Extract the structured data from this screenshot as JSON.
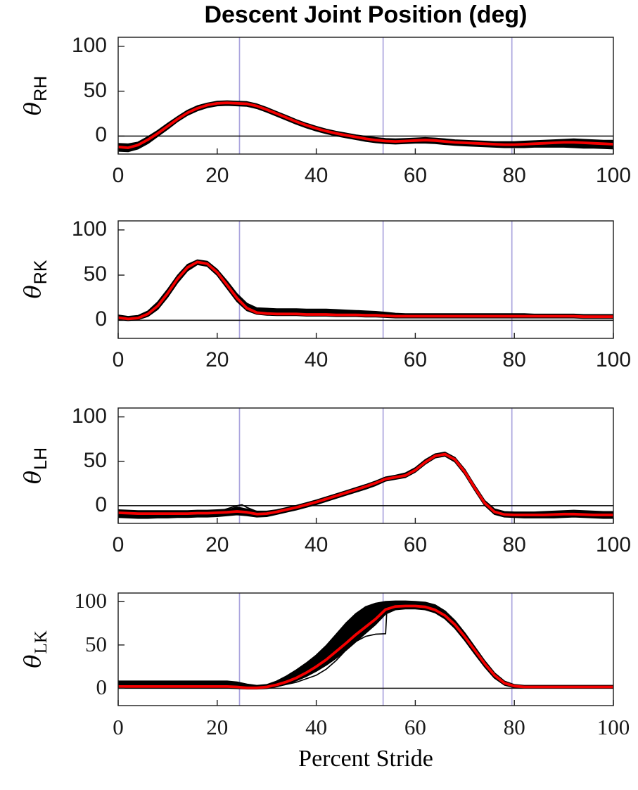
{
  "chart_data": {
    "type": "line",
    "title": "Descent Joint Position (deg)",
    "xlabel": "Percent Stride",
    "xlim": [
      0,
      100
    ],
    "ylim": [
      -20,
      110
    ],
    "xticks": [
      0,
      20,
      40,
      60,
      80,
      100
    ],
    "xtick_labels": [
      "0",
      "20",
      "40",
      "60",
      "80",
      "100"
    ],
    "yticks": [
      100,
      50,
      0
    ],
    "ytick_labels": [
      "100",
      "50",
      "0"
    ],
    "event_lines_x": [
      24.5,
      53.5,
      79.5
    ],
    "grid": false,
    "legend": null,
    "colors": {
      "mean": "#f40000",
      "trials": "#000000",
      "event_lines": "#aaa4de",
      "axis": "#1a1a1a",
      "zero_line": "#1a1a1a"
    },
    "x": [
      0,
      2,
      4,
      6,
      8,
      10,
      12,
      14,
      16,
      18,
      20,
      22,
      24,
      26,
      28,
      30,
      32,
      34,
      36,
      38,
      40,
      42,
      44,
      46,
      48,
      50,
      52,
      54,
      56,
      58,
      60,
      62,
      64,
      66,
      68,
      70,
      72,
      74,
      76,
      78,
      80,
      82,
      84,
      86,
      88,
      90,
      92,
      94,
      96,
      98,
      100
    ],
    "panels": [
      {
        "id": "RH",
        "ylabel_theta": "θ",
        "ylabel_sub": "RH",
        "tick_style": "sans",
        "mean": [
          -12,
          -13,
          -10,
          -4,
          3,
          11,
          19,
          26,
          31,
          34.5,
          36.5,
          37,
          36.5,
          36,
          33.5,
          29.5,
          25,
          20.5,
          16,
          12,
          8.5,
          5.5,
          3,
          1,
          -1,
          -3,
          -4.5,
          -5.5,
          -6,
          -5.5,
          -5,
          -4.5,
          -5,
          -6,
          -7,
          -7.5,
          -8,
          -8.5,
          -9,
          -9.5,
          -9.5,
          -9,
          -8.5,
          -8,
          -7.5,
          -7,
          -7,
          -7.5,
          -8,
          -8.5,
          -9
        ],
        "upper": [
          -8.5,
          -9,
          -7,
          -1,
          6,
          14,
          21.5,
          28.5,
          33.5,
          36.5,
          38.5,
          39,
          38.5,
          38,
          35.5,
          31.5,
          27,
          22.5,
          18,
          14,
          10.5,
          7.5,
          5,
          3,
          1,
          -0.5,
          -2,
          -3,
          -3.5,
          -3,
          -2.5,
          -2,
          -2.5,
          -3.5,
          -4.5,
          -5,
          -5.5,
          -6,
          -6.5,
          -6.5,
          -6.5,
          -6,
          -5.5,
          -5,
          -4.5,
          -4,
          -3.5,
          -4,
          -4.5,
          -5,
          -5
        ],
        "lower": [
          -16.5,
          -17,
          -14,
          -8,
          0,
          8,
          16.5,
          23.5,
          28.5,
          32,
          34,
          34.5,
          34,
          33.5,
          31,
          27,
          22.5,
          18,
          13.5,
          9.5,
          6,
          3,
          0.5,
          -1.5,
          -3.5,
          -5.5,
          -7,
          -8,
          -8.5,
          -8,
          -7.5,
          -7.5,
          -8,
          -9,
          -10,
          -10.5,
          -11,
          -11.5,
          -12,
          -12.5,
          -12.5,
          -12.5,
          -12,
          -12,
          -12,
          -12,
          -12.5,
          -13,
          -13,
          -13.5,
          -14
        ],
        "extra_traces": []
      },
      {
        "id": "RK",
        "ylabel_theta": "θ",
        "ylabel_sub": "RK",
        "tick_style": "sans",
        "mean": [
          3,
          1.5,
          2.5,
          7,
          16,
          30,
          46,
          58.5,
          64.5,
          62.5,
          53,
          39,
          24.5,
          13.5,
          8.5,
          7.5,
          7,
          7,
          7,
          6.5,
          6.5,
          6.5,
          6,
          6,
          6,
          5.5,
          5.5,
          5,
          4.5,
          4.5,
          4.5,
          4.5,
          4.5,
          4.5,
          4.5,
          4.5,
          4.5,
          4.5,
          4.5,
          4.5,
          4.5,
          4.5,
          4.5,
          4.5,
          4.5,
          4.5,
          4.5,
          4,
          4,
          4,
          4
        ],
        "upper": [
          5.5,
          4,
          5,
          10,
          20,
          34,
          49.5,
          61.5,
          66.5,
          65,
          56,
          43,
          29,
          18.5,
          13.5,
          13,
          12.5,
          12.5,
          12.5,
          12,
          12,
          12,
          11.5,
          11,
          10.5,
          10,
          9.5,
          8.5,
          7.5,
          7,
          7,
          7,
          7,
          7,
          7,
          7,
          7,
          7,
          7,
          7,
          7,
          7,
          6.5,
          6.5,
          6.5,
          6.5,
          6.5,
          6,
          6,
          6,
          6
        ],
        "lower": [
          1,
          0,
          1,
          4.5,
          12.5,
          26,
          42,
          55,
          62,
          60,
          50,
          35.5,
          21,
          11,
          7,
          6,
          5.5,
          5.5,
          5.5,
          5,
          5,
          5,
          4.5,
          4.5,
          4.5,
          4,
          4,
          3.5,
          3,
          3,
          3,
          3,
          3,
          3,
          3,
          3,
          3,
          3,
          3,
          3,
          3,
          3,
          3,
          3,
          3,
          3,
          3,
          2.5,
          2.5,
          2.5,
          2.5
        ],
        "extra_traces": []
      },
      {
        "id": "LH",
        "ylabel_theta": "θ",
        "ylabel_sub": "LH",
        "tick_style": "sans",
        "mean": [
          -8,
          -8.5,
          -9,
          -9,
          -9,
          -9,
          -9,
          -9,
          -8.5,
          -8.5,
          -8,
          -7.5,
          -6.5,
          -7.5,
          -9.5,
          -9,
          -7,
          -4.5,
          -2,
          1,
          4,
          7.5,
          11,
          14.5,
          18,
          21.5,
          25.5,
          30,
          32,
          34,
          40,
          49,
          56,
          58,
          52,
          38,
          20,
          3,
          -7,
          -10,
          -10.5,
          -10.5,
          -10.5,
          -10.5,
          -10,
          -9.5,
          -9.5,
          -10,
          -10.5,
          -10.5,
          -10.5
        ],
        "upper": [
          -5,
          -5.5,
          -6,
          -6,
          -6,
          -6,
          -6,
          -6,
          -5.5,
          -5.5,
          -5,
          -4.5,
          -3,
          -4,
          -6.5,
          -6.5,
          -5,
          -2.5,
          0,
          3,
          6,
          9.5,
          13,
          16.5,
          20,
          23.5,
          27.5,
          32,
          34,
          36.5,
          42.5,
          51.5,
          58,
          60,
          54,
          40.5,
          22.5,
          5.5,
          -4,
          -7,
          -7.5,
          -7.5,
          -7.5,
          -7,
          -6.5,
          -6,
          -5.5,
          -6,
          -6.5,
          -7,
          -7
        ],
        "lower": [
          -13,
          -13.5,
          -14,
          -14,
          -13.5,
          -13.5,
          -13,
          -13,
          -12.5,
          -12.5,
          -12,
          -11,
          -10,
          -11,
          -12.5,
          -12,
          -9.5,
          -7,
          -4.5,
          -1.5,
          1.5,
          5,
          8.5,
          12,
          15.5,
          19,
          23,
          28,
          30,
          32,
          38,
          47,
          54,
          56,
          49.5,
          35.5,
          17.5,
          0.5,
          -9.5,
          -12.5,
          -13,
          -13.5,
          -13.5,
          -13.5,
          -13.5,
          -13,
          -12.5,
          -13,
          -13.5,
          -14,
          -14
        ],
        "extra_traces": [
          {
            "x": [
              20,
              22,
              24,
              25,
              26,
              28,
              30
            ],
            "y": [
              -7,
              -3.5,
              0,
              1,
              -2,
              -6.5,
              -9
            ]
          },
          {
            "x": [
              20,
              22,
              24,
              26,
              28,
              30
            ],
            "y": [
              -8,
              -5,
              -1.5,
              -4,
              -8,
              -10
            ]
          }
        ]
      },
      {
        "id": "LK",
        "ylabel_theta": "θ",
        "ylabel_sub": "LK",
        "tick_style": "serif",
        "mean": [
          2,
          2,
          2,
          2,
          2,
          2,
          2,
          2,
          2,
          2,
          2,
          2,
          1.5,
          0.5,
          0.5,
          1.5,
          4,
          7.5,
          12,
          18,
          25,
          33,
          42.5,
          52,
          62,
          71,
          80,
          91,
          94.5,
          95,
          95,
          94,
          90.5,
          84,
          73.5,
          59.5,
          44,
          28.5,
          15,
          6,
          2.5,
          1.5,
          1.5,
          1.5,
          1.5,
          1.5,
          1.5,
          1.5,
          1.5,
          1.5,
          1.5
        ],
        "upper": [
          8,
          8,
          8,
          8,
          8,
          8,
          8,
          8,
          8,
          8,
          8,
          8,
          7,
          4.5,
          3,
          4,
          8,
          14,
          21,
          29,
          38,
          49,
          62,
          75,
          86,
          94,
          98,
          100,
          100.5,
          100.5,
          100,
          99,
          96,
          89,
          78,
          63.5,
          47.5,
          31.5,
          17.5,
          8,
          4,
          3,
          3,
          3,
          3,
          3,
          3,
          3,
          3,
          3,
          3
        ],
        "lower": [
          0.5,
          0.5,
          0.5,
          0.5,
          0.5,
          0.5,
          0.5,
          0.5,
          0.5,
          0.5,
          0.5,
          0.5,
          0,
          -0.5,
          -0.5,
          0,
          2,
          5,
          9,
          14,
          20,
          27,
          35,
          44,
          54,
          64,
          74,
          86,
          91,
          92,
          92,
          91,
          87.5,
          80.5,
          69.5,
          55.5,
          40,
          25,
          12,
          4,
          1,
          0.5,
          0.5,
          0.5,
          0.5,
          0.5,
          0.5,
          0.5,
          0.5,
          0.5,
          0.5
        ],
        "extra_traces": [
          {
            "x": [
              28,
              32,
              36,
              40,
              42,
              44,
              46,
              48,
              50,
              52,
              54,
              54.3,
              56,
              58
            ],
            "y": [
              0.5,
              2,
              7,
              15,
              22,
              32,
              44,
              54,
              60,
              62.5,
              63,
              96,
              98,
              99
            ]
          }
        ]
      }
    ]
  }
}
